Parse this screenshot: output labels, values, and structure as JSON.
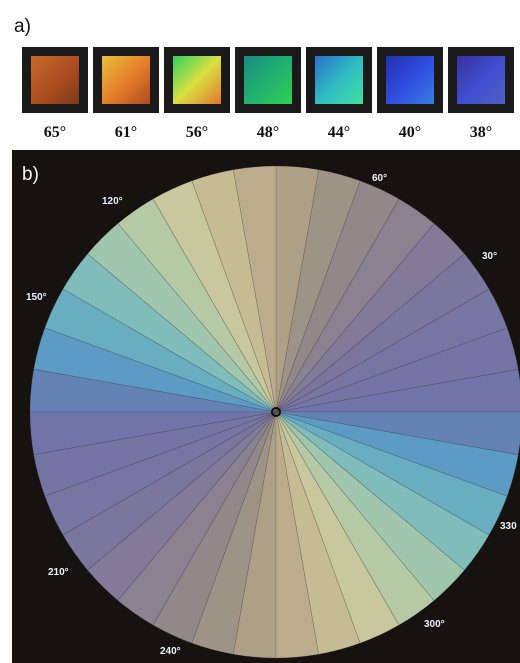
{
  "panel_a": {
    "label": "a)",
    "angles": [
      "65°",
      "61°",
      "56°",
      "48°",
      "44°",
      "40°",
      "38°"
    ]
  },
  "panel_b": {
    "label": "b)",
    "wheel_labels": [
      "120°",
      "60°",
      "30°",
      "150°",
      "330",
      "210°",
      "240°",
      "300°"
    ]
  }
}
